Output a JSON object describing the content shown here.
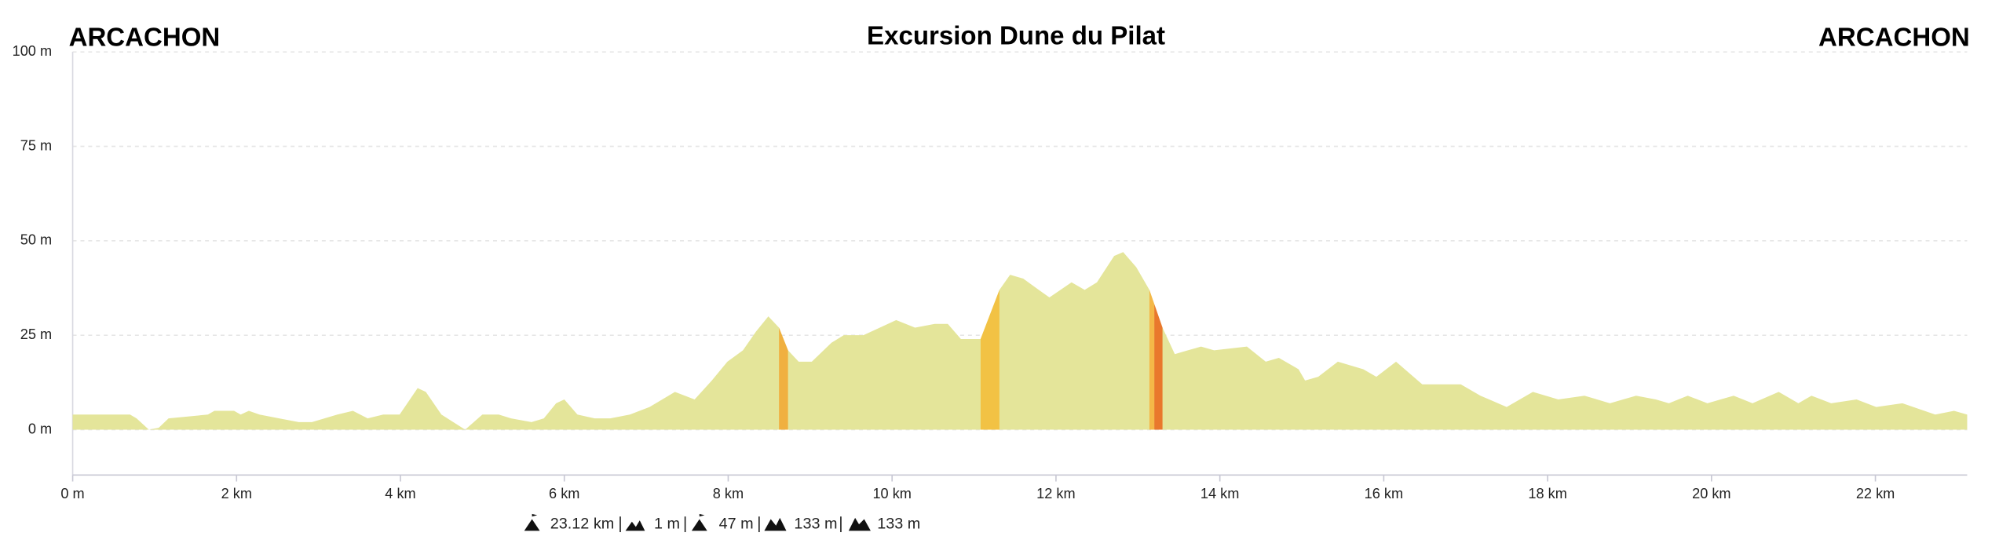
{
  "chart_data": {
    "type": "area",
    "title": "Excursion Dune du Pilat",
    "start_label": "ARCACHON",
    "end_label": "ARCACHON",
    "color": "#e4e59a",
    "grid": true,
    "xlim": [
      0,
      23.12
    ],
    "ylim": [
      -12,
      100
    ],
    "xticks": [
      {
        "value": 0,
        "label": "0 m"
      },
      {
        "value": 2,
        "label": "2 km"
      },
      {
        "value": 4,
        "label": "4 km"
      },
      {
        "value": 6,
        "label": "6 km"
      },
      {
        "value": 8,
        "label": "8 km"
      },
      {
        "value": 10,
        "label": "10 km"
      },
      {
        "value": 12,
        "label": "12 km"
      },
      {
        "value": 14,
        "label": "14 km"
      },
      {
        "value": 16,
        "label": "16 km"
      },
      {
        "value": 18,
        "label": "18 km"
      },
      {
        "value": 20,
        "label": "20 km"
      },
      {
        "value": 22,
        "label": "22 km"
      }
    ],
    "yticks": [
      {
        "value": 0,
        "label": "0 m"
      },
      {
        "value": 25,
        "label": "25 m"
      },
      {
        "value": 50,
        "label": "50 m"
      },
      {
        "value": 75,
        "label": "75 m"
      },
      {
        "value": 100,
        "label": "100 m"
      }
    ],
    "x": [
      0,
      0.7,
      0.78,
      0.93,
      1.05,
      1.17,
      1.65,
      1.73,
      1.97,
      2.05,
      2.15,
      2.28,
      2.52,
      2.76,
      2.92,
      3.23,
      3.42,
      3.6,
      3.79,
      3.99,
      4.21,
      4.31,
      4.5,
      4.79,
      5.0,
      5.2,
      5.35,
      5.6,
      5.75,
      5.9,
      6.0,
      6.16,
      6.37,
      6.56,
      6.8,
      7.04,
      7.35,
      7.59,
      7.8,
      7.99,
      8.18,
      8.34,
      8.49,
      8.62,
      8.73,
      8.86,
      9.02,
      9.26,
      9.41,
      9.65,
      10.05,
      10.28,
      10.52,
      10.68,
      10.84,
      11.08,
      11.31,
      11.44,
      11.6,
      11.79,
      11.92,
      12.19,
      12.35,
      12.5,
      12.71,
      12.82,
      12.98,
      13.14,
      13.3,
      13.45,
      13.61,
      13.77,
      13.93,
      14.33,
      14.56,
      14.72,
      14.96,
      15.04,
      15.2,
      15.44,
      15.75,
      15.91,
      16.15,
      16.47,
      16.94,
      17.18,
      17.5,
      17.82,
      18.13,
      18.45,
      18.76,
      19.08,
      19.32,
      19.48,
      19.71,
      19.95,
      20.27,
      20.5,
      20.82,
      21.06,
      21.22,
      21.46,
      21.77,
      22.01,
      22.33,
      22.73,
      22.96,
      23.12
    ],
    "values": [
      4,
      4,
      3,
      0,
      0.5,
      3,
      4,
      5,
      5,
      4,
      5,
      4,
      3,
      2,
      2,
      4,
      5,
      3,
      4,
      4,
      11,
      10,
      4,
      0,
      4,
      4,
      3,
      2,
      3,
      7,
      8,
      4,
      3,
      3,
      4,
      6,
      10,
      8,
      13,
      18,
      21,
      26,
      30,
      27,
      21,
      18,
      18,
      23,
      25,
      25,
      29,
      27,
      28,
      28,
      24,
      24,
      37,
      41,
      40,
      37,
      35,
      39,
      37,
      39,
      46,
      47,
      43,
      37,
      27,
      20,
      21,
      22,
      21,
      22,
      18,
      19,
      16,
      13,
      14,
      18,
      16,
      14,
      18,
      12,
      12,
      9,
      6,
      10,
      8,
      9,
      7,
      9,
      8,
      7,
      9,
      7,
      9,
      7,
      10,
      7,
      9,
      7,
      8,
      6,
      7,
      4,
      5,
      4
    ],
    "segments": [
      {
        "x0": 8.62,
        "x1": 8.73,
        "color": "#f0b040"
      },
      {
        "x0": 11.08,
        "x1": 11.31,
        "color": "#f2c244"
      },
      {
        "x0": 13.14,
        "x1": 13.2,
        "color": "#f4b848"
      },
      {
        "x0": 13.2,
        "x1": 13.3,
        "color": "#e9782c"
      }
    ],
    "stats": [
      "23.12 km",
      "1 m",
      "47 m",
      "133 m",
      "133 m"
    ]
  }
}
